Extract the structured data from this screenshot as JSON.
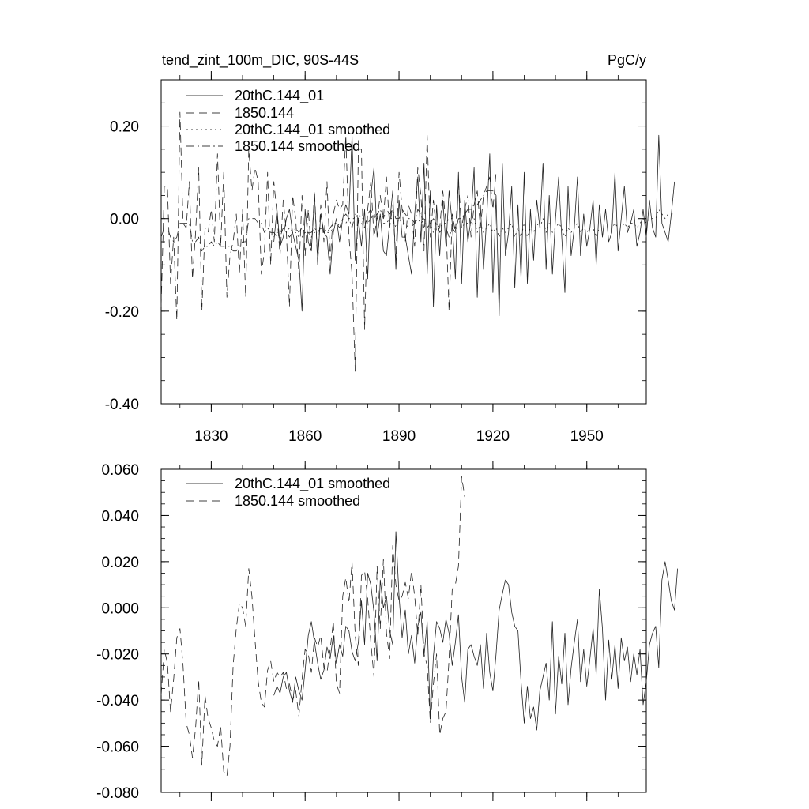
{
  "chart_data": [
    {
      "type": "line",
      "title": "tend_zint_100m_DIC, 90S-44S",
      "units": "PgC/y",
      "xlabel": "",
      "ylabel": "",
      "xlim": [
        1814,
        1969
      ],
      "ylim": [
        -0.4,
        0.3
      ],
      "yticks": [
        -0.4,
        -0.2,
        0.0,
        0.2
      ],
      "ytick_labels": [
        "-0.40",
        "-0.20",
        "0.00",
        "0.20"
      ],
      "xticks": [
        1830,
        1860,
        1890,
        1920,
        1950
      ],
      "xtick_labels": [
        "1830",
        "1860",
        "1890",
        "1920",
        "1950"
      ],
      "legend": [
        "20thC.144_01",
        "1850.144",
        "20thC.144_01 smoothed",
        "1850.144 smoothed"
      ],
      "series": [
        {
          "name": "20thC.144_01",
          "style": "solid",
          "x_start": 1850,
          "x_step": 1,
          "values": [
            -0.05,
            0.02,
            -0.06,
            -0.04,
            0.0,
            0.02,
            -0.03,
            -0.06,
            -0.09,
            -0.2,
            0.02,
            -0.05,
            -0.07,
            0.05,
            -0.09,
            0.01,
            -0.03,
            -0.04,
            -0.12,
            -0.03,
            0.0,
            -0.05,
            0.0,
            0.03,
            0.01,
            0.18,
            -0.09,
            0.0,
            -0.06,
            0.02,
            -0.13,
            0.05,
            0.11,
            -0.04,
            0.01,
            -0.07,
            -0.08,
            -0.01,
            0.06,
            -0.11,
            0.04,
            -0.04,
            -0.04,
            -0.08,
            -0.12,
            0.01,
            0.09,
            -0.05,
            0.12,
            -0.12,
            0.06,
            -0.19,
            0.03,
            -0.08,
            0.04,
            -0.06,
            0.06,
            -0.01,
            -0.13,
            0.1,
            -0.14,
            0.04,
            -0.05,
            0.0,
            0.11,
            -0.17,
            0.03,
            -0.11,
            0.0,
            0.14,
            -0.16,
            0.05,
            -0.21,
            0.12,
            -0.08,
            -0.03,
            0.07,
            -0.15,
            0.03,
            -0.13,
            0.1,
            -0.14,
            0.02,
            -0.09,
            0.04,
            -0.02,
            0.12,
            -0.11,
            0.05,
            -0.12,
            0.0,
            0.09,
            -0.04,
            -0.16,
            0.07,
            -0.08,
            -0.02,
            0.09,
            -0.08,
            0.01,
            -0.06,
            -0.02,
            0.04,
            -0.1,
            0.03,
            -0.04,
            0.02,
            -0.05,
            -0.03,
            0.1,
            -0.07,
            0.0,
            0.07,
            -0.03,
            -0.01,
            0.02,
            -0.06,
            -0.03,
            0.02,
            -0.04,
            0.04,
            -0.02,
            -0.04,
            0.18,
            -0.01,
            -0.03,
            -0.05,
            0.01,
            0.08
          ]
        },
        {
          "name": "1850.144",
          "style": "dashed",
          "x_start": 1814,
          "x_step": 1,
          "values": [
            -0.19,
            0.07,
            0.07,
            -0.14,
            -0.04,
            -0.22,
            0.23,
            -0.01,
            -0.02,
            0.08,
            -0.13,
            -0.03,
            0.11,
            -0.2,
            -0.02,
            -0.03,
            0.02,
            -0.05,
            0.14,
            -0.06,
            0.1,
            -0.17,
            -0.08,
            -0.05,
            0.01,
            -0.12,
            0.02,
            -0.17,
            0.15,
            0.06,
            0.11,
            0.08,
            -0.12,
            -0.07,
            0.1,
            -0.1,
            0.08,
            0.01,
            -0.08,
            0.04,
            -0.03,
            -0.19,
            0.05,
            0.0,
            -0.12,
            0.05,
            -0.08,
            0.02,
            -0.07,
            0.06,
            -0.1,
            0.03,
            -0.05,
            0.08,
            -0.09,
            0.01,
            0.04,
            0.02,
            0.03,
            0.18,
            -0.04,
            -0.12,
            -0.33,
            0.15,
            0.15,
            -0.24,
            0.02,
            0.08,
            -0.04,
            0.0,
            0.05,
            0.0,
            0.09,
            -0.02,
            0.03,
            -0.09,
            0.1,
            0.02,
            -0.05,
            0.03,
            0.01,
            -0.06,
            0.11,
            0.05,
            -0.07,
            0.18,
            -0.04,
            0.04,
            -0.03,
            -0.02,
            0.06,
            -0.01,
            -0.2,
            0.01,
            -0.03,
            0.08,
            -0.02,
            0.02,
            0.05,
            -0.04,
            0.03,
            0.06,
            -0.02,
            0.05,
            0.07,
            0.09,
            0.02,
            0.1
          ]
        },
        {
          "name": "20thC.144_01 smoothed",
          "style": "dotted",
          "x_start": 1850,
          "x_step": 1,
          "values": [
            -0.04,
            -0.03,
            -0.03,
            -0.02,
            -0.03,
            -0.02,
            -0.03,
            -0.03,
            -0.04,
            -0.04,
            -0.03,
            -0.03,
            -0.04,
            -0.03,
            -0.03,
            -0.02,
            -0.03,
            -0.03,
            -0.03,
            -0.02,
            -0.02,
            -0.01,
            0.0,
            -0.01,
            0.0,
            0.0,
            0.0,
            0.01,
            0.0,
            0.0,
            -0.01,
            0.0,
            0.01,
            0.0,
            0.0,
            -0.01,
            -0.01,
            0.0,
            0.0,
            -0.02,
            0.0,
            -0.01,
            -0.01,
            -0.02,
            -0.02,
            -0.01,
            0.0,
            -0.01,
            0.0,
            -0.02,
            -0.01,
            -0.03,
            -0.01,
            -0.02,
            -0.01,
            -0.01,
            0.0,
            0.0,
            -0.02,
            0.0,
            -0.02,
            -0.01,
            -0.01,
            -0.01,
            0.0,
            -0.03,
            -0.01,
            -0.03,
            -0.02,
            -0.01,
            -0.03,
            -0.02,
            -0.04,
            -0.02,
            -0.03,
            -0.02,
            -0.01,
            -0.04,
            -0.02,
            -0.04,
            -0.01,
            -0.04,
            -0.02,
            -0.03,
            -0.01,
            -0.02,
            0.0,
            -0.03,
            -0.01,
            -0.03,
            -0.02,
            -0.01,
            -0.02,
            -0.04,
            -0.02,
            -0.03,
            -0.02,
            -0.01,
            -0.03,
            -0.02,
            -0.03,
            -0.02,
            -0.02,
            -0.04,
            -0.02,
            -0.02,
            -0.02,
            -0.02,
            -0.02,
            -0.01,
            -0.02,
            -0.02,
            -0.01,
            -0.02,
            -0.01,
            -0.01,
            -0.02,
            -0.01,
            0.0,
            -0.01,
            0.0,
            0.0,
            0.0,
            0.02,
            0.01,
            0.0,
            0.01,
            0.01,
            0.01
          ]
        },
        {
          "name": "1850.144 smoothed",
          "style": "dashdot",
          "x_start": 1814,
          "x_step": 1,
          "values": [
            -0.04,
            -0.02,
            -0.02,
            -0.04,
            -0.05,
            -0.04,
            -0.01,
            -0.01,
            -0.01,
            -0.01,
            -0.05,
            -0.05,
            -0.04,
            -0.07,
            -0.06,
            -0.06,
            -0.05,
            -0.06,
            -0.05,
            -0.06,
            -0.06,
            -0.06,
            -0.06,
            -0.07,
            -0.07,
            -0.06,
            -0.05,
            -0.05,
            0.0,
            0.0,
            0.0,
            -0.01,
            -0.01,
            -0.03,
            -0.02,
            -0.03,
            -0.03,
            -0.04,
            -0.04,
            -0.02,
            -0.03,
            -0.04,
            -0.03,
            -0.02,
            -0.03,
            -0.02,
            -0.03,
            -0.03,
            -0.03,
            -0.02,
            -0.03,
            -0.02,
            -0.02,
            -0.03,
            -0.02,
            -0.01,
            -0.01,
            -0.02,
            0.0,
            0.01,
            0.0,
            -0.02,
            0.01,
            0.0,
            -0.01,
            -0.02,
            0.01,
            0.02,
            0.0,
            0.01,
            0.02,
            0.0,
            0.02,
            0.01,
            0.02,
            0.0,
            0.0,
            0.02,
            0.01,
            0.0,
            0.0,
            -0.01,
            0.02,
            0.01,
            -0.02,
            -0.02,
            -0.01,
            0.0,
            -0.01,
            -0.03,
            -0.02,
            -0.02,
            -0.04,
            -0.02,
            -0.03,
            0.0,
            0.0,
            0.01,
            0.02,
            0.02,
            0.03,
            0.03,
            0.04,
            0.05,
            0.06,
            0.06,
            0.06,
            0.05
          ]
        }
      ]
    },
    {
      "type": "line",
      "title": "",
      "xlabel": "",
      "ylabel": "",
      "xlim": [
        1814,
        1969
      ],
      "ylim": [
        -0.08,
        0.06
      ],
      "yticks": [
        -0.08,
        -0.06,
        -0.04,
        -0.02,
        0.0,
        0.02,
        0.04,
        0.06
      ],
      "ytick_labels": [
        "-0.080",
        "-0.060",
        "-0.040",
        "-0.020",
        "0.000",
        "0.020",
        "0.040",
        "0.060"
      ],
      "xticks": [
        1830,
        1860,
        1890,
        1920,
        1950
      ],
      "legend": [
        "20thC.144_01 smoothed",
        "1850.144 smoothed"
      ],
      "series": [
        {
          "name": "20thC.144_01 smoothed",
          "style": "solid",
          "x_start": 1850,
          "x_step": 1,
          "values": [
            -0.038,
            -0.034,
            -0.037,
            -0.03,
            -0.028,
            -0.036,
            -0.041,
            -0.03,
            -0.036,
            -0.04,
            -0.027,
            -0.012,
            -0.006,
            -0.015,
            -0.024,
            -0.031,
            -0.027,
            -0.017,
            -0.022,
            -0.012,
            -0.024,
            -0.016,
            -0.021,
            -0.008,
            -0.01,
            -0.019,
            -0.023,
            -0.015,
            0.003,
            -0.016,
            0.015,
            0.01,
            -0.002,
            -0.023,
            0.012,
            0.0,
            0.005,
            -0.01,
            -0.016,
            0.033,
            0.005,
            -0.013,
            -0.001,
            -0.02,
            -0.012,
            -0.024,
            -0.008,
            -0.002,
            -0.021,
            -0.006,
            -0.048,
            -0.021,
            -0.006,
            -0.009,
            -0.015,
            -0.005,
            -0.011,
            -0.025,
            -0.015,
            -0.003,
            -0.03,
            -0.041,
            -0.018,
            -0.016,
            -0.021,
            -0.025,
            -0.016,
            -0.035,
            -0.011,
            -0.028,
            -0.036,
            -0.02,
            -0.001,
            0.006,
            0.012,
            0.01,
            -0.002,
            -0.008,
            -0.01,
            -0.032,
            -0.05,
            -0.034,
            -0.048,
            -0.043,
            -0.053,
            -0.036,
            -0.03,
            -0.024,
            -0.04,
            -0.006,
            -0.046,
            -0.021,
            -0.033,
            -0.011,
            -0.042,
            -0.026,
            -0.015,
            -0.005,
            -0.032,
            -0.018,
            -0.034,
            -0.022,
            -0.009,
            -0.029,
            0.008,
            -0.009,
            -0.04,
            -0.014,
            -0.031,
            -0.016,
            -0.035,
            -0.013,
            -0.023,
            -0.017,
            -0.032,
            -0.02,
            -0.029,
            -0.018,
            -0.042,
            -0.032,
            -0.016,
            -0.011,
            -0.008,
            -0.026,
            0.012,
            0.02,
            0.012,
            0.003,
            -0.001,
            0.017
          ]
        },
        {
          "name": "1850.144 smoothed",
          "style": "dashed",
          "x_start": 1814,
          "x_step": 1,
          "values": [
            -0.038,
            -0.018,
            -0.024,
            -0.045,
            -0.031,
            -0.013,
            -0.009,
            -0.025,
            -0.05,
            -0.055,
            -0.065,
            -0.052,
            -0.031,
            -0.068,
            -0.038,
            -0.048,
            -0.052,
            -0.058,
            -0.06,
            -0.051,
            -0.071,
            -0.073,
            -0.06,
            -0.025,
            -0.009,
            0.002,
            0.0,
            -0.008,
            0.017,
            0.005,
            -0.014,
            -0.032,
            -0.041,
            -0.043,
            -0.027,
            -0.023,
            -0.032,
            -0.028,
            -0.03,
            -0.028,
            -0.035,
            -0.033,
            -0.04,
            -0.036,
            -0.047,
            -0.031,
            -0.018,
            -0.02,
            -0.028,
            -0.013,
            -0.017,
            -0.012,
            -0.026,
            -0.028,
            -0.018,
            -0.006,
            -0.033,
            -0.037,
            0.005,
            0.013,
            0.002,
            0.02,
            -0.012,
            -0.025,
            0.014,
            0.016,
            0.004,
            -0.015,
            -0.03,
            0.018,
            -0.009,
            0.021,
            -0.011,
            -0.022,
            0.027,
            0.01,
            0.003,
            0.005,
            0.011,
            0.004,
            0.016,
            0.005,
            -0.012,
            0.01,
            -0.02,
            -0.025,
            -0.05,
            -0.033,
            -0.02,
            -0.055,
            -0.048,
            -0.045,
            -0.022,
            0.008,
            0.01,
            0.018,
            0.057,
            0.048
          ]
        }
      ]
    }
  ]
}
